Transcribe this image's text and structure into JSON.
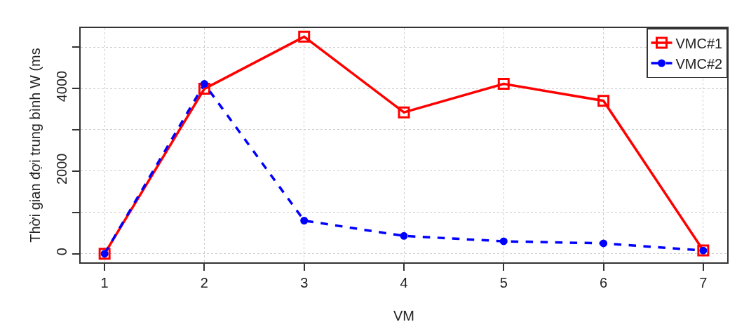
{
  "chart_data": {
    "type": "line",
    "xlabel": "VM",
    "ylabel": "Thời gian đợi trung bình W (ms",
    "x": [
      1,
      2,
      3,
      4,
      5,
      6,
      7
    ],
    "series": [
      {
        "name": "VMC#1",
        "color": "#ff0000",
        "marker": "square",
        "line_style": "solid",
        "values": [
          0,
          3990,
          5250,
          3420,
          4110,
          3700,
          80
        ]
      },
      {
        "name": "VMC#2",
        "color": "#0000ff",
        "marker": "circle",
        "line_style": "dashed",
        "values": [
          0,
          4110,
          800,
          430,
          300,
          250,
          75
        ]
      }
    ],
    "xlim": [
      0.76,
      7.24
    ],
    "xticks": [
      1,
      2,
      3,
      4,
      5,
      6,
      7
    ],
    "ylim": [
      -210,
      5460
    ],
    "yticks": [
      0,
      {
        "value": 1000,
        "label": null
      },
      2000,
      {
        "value": 3000,
        "label": null
      },
      4000,
      {
        "value": 5000,
        "label": null
      }
    ],
    "grid": true,
    "legend": "top right"
  }
}
